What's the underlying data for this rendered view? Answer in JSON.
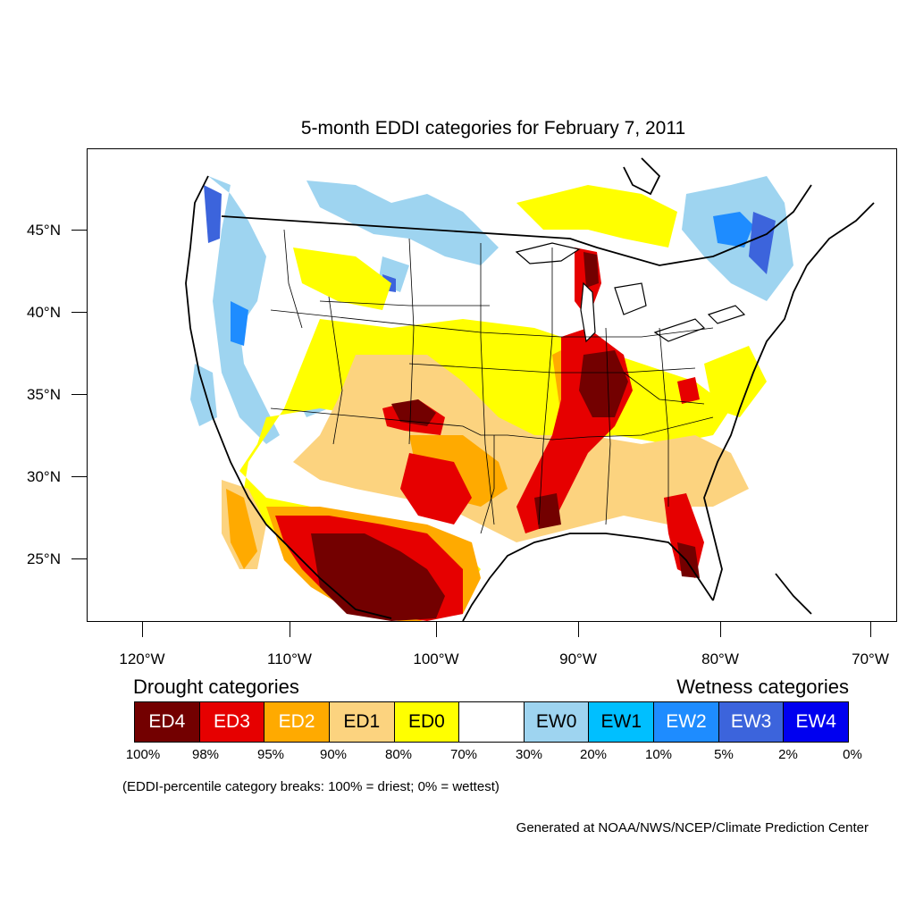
{
  "title": "5-month EDDI categories for February 7, 2011",
  "lat_labels": [
    "45°N",
    "40°N",
    "35°N",
    "30°N",
    "25°N"
  ],
  "lon_labels": [
    "120°W",
    "110°W",
    "100°W",
    "90°W",
    "80°W",
    "70°W"
  ],
  "drought_title": "Drought categories",
  "wetness_title": "Wetness categories",
  "legend": [
    {
      "label": "ED4",
      "color": "#730000",
      "text_color": "#ffffff"
    },
    {
      "label": "ED3",
      "color": "#e60000",
      "text_color": "#ffffff"
    },
    {
      "label": "ED2",
      "color": "#ffaa00",
      "text_color": "#ffffff"
    },
    {
      "label": "ED1",
      "color": "#fcd37f",
      "text_color": "#000000"
    },
    {
      "label": "ED0",
      "color": "#ffff00",
      "text_color": "#000000"
    },
    {
      "label": "",
      "color": "#ffffff",
      "text_color": "#000000"
    },
    {
      "label": "EW0",
      "color": "#9ed4f0",
      "text_color": "#000000"
    },
    {
      "label": "EW1",
      "color": "#00bfff",
      "text_color": "#000000"
    },
    {
      "label": "EW2",
      "color": "#1e8cff",
      "text_color": "#ffffff"
    },
    {
      "label": "EW3",
      "color": "#3c64dc",
      "text_color": "#ffffff"
    },
    {
      "label": "EW4",
      "color": "#0000f0",
      "text_color": "#ffffff"
    }
  ],
  "breaks": [
    "100%",
    "98%",
    "95%",
    "90%",
    "80%",
    "70%",
    "30%",
    "20%",
    "10%",
    "5%",
    "2%",
    "0%"
  ],
  "note": "(EDDI-percentile category breaks: 100% = driest; 0% = wettest)",
  "credit": "Generated at NOAA/NWS/NCEP/Climate Prediction Center"
}
